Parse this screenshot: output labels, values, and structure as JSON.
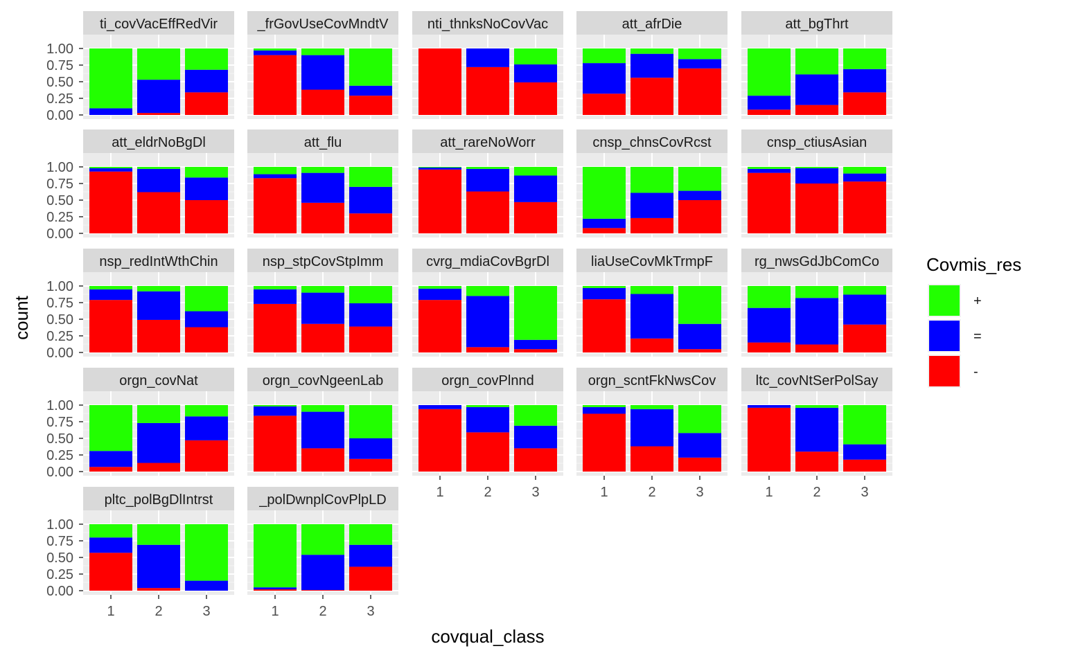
{
  "chart_data": {
    "type": "bar",
    "stacked": true,
    "position": "fill",
    "xlabel": "covqual_class",
    "ylabel": "count",
    "categories": [
      "1",
      "2",
      "3"
    ],
    "ylim": [
      0,
      1
    ],
    "y_ticks": [
      "0.00",
      "0.25",
      "0.50",
      "0.75",
      "1.00"
    ],
    "grid": true,
    "legend": {
      "title": "Covmis_res",
      "placement": "right",
      "entries": [
        {
          "label": "+",
          "color": "#22ff00"
        },
        {
          "label": "=",
          "color": "#0000ff"
        },
        {
          "label": "-",
          "color": "#ff0000"
        }
      ]
    },
    "series_order_bottom_to_top": [
      "-",
      "=",
      "+"
    ],
    "facets": [
      {
        "title": "ti_covVacEffRedVir",
        "minus": [
          0.0,
          0.03,
          0.34
        ],
        "eq": [
          0.1,
          0.5,
          0.34
        ]
      },
      {
        "title": "_frGovUseCovMndtV",
        "minus": [
          0.9,
          0.38,
          0.29
        ],
        "eq": [
          0.07,
          0.52,
          0.15
        ]
      },
      {
        "title": "nti_thnksNoCovVac",
        "minus": [
          1.0,
          0.72,
          0.49
        ],
        "eq": [
          0.0,
          0.28,
          0.27
        ]
      },
      {
        "title": "att_afrDie",
        "minus": [
          0.32,
          0.56,
          0.7
        ],
        "eq": [
          0.46,
          0.36,
          0.14
        ]
      },
      {
        "title": "att_bgThrt",
        "minus": [
          0.08,
          0.15,
          0.34
        ],
        "eq": [
          0.21,
          0.46,
          0.35
        ]
      },
      {
        "title": "att_eldrNoBgDl",
        "minus": [
          0.93,
          0.62,
          0.5
        ],
        "eq": [
          0.05,
          0.35,
          0.34
        ]
      },
      {
        "title": "att_flu",
        "minus": [
          0.83,
          0.46,
          0.3
        ],
        "eq": [
          0.06,
          0.45,
          0.4
        ]
      },
      {
        "title": "att_rareNoWorr",
        "minus": [
          0.96,
          0.63,
          0.47
        ],
        "eq": [
          0.03,
          0.34,
          0.4
        ]
      },
      {
        "title": "cnsp_chnsCovRcst",
        "minus": [
          0.08,
          0.23,
          0.5
        ],
        "eq": [
          0.14,
          0.38,
          0.14
        ]
      },
      {
        "title": "cnsp_ctiusAsian",
        "minus": [
          0.91,
          0.75,
          0.78
        ],
        "eq": [
          0.06,
          0.23,
          0.12
        ]
      },
      {
        "title": "nsp_redIntWthChin",
        "minus": [
          0.79,
          0.49,
          0.38
        ],
        "eq": [
          0.16,
          0.43,
          0.24
        ]
      },
      {
        "title": "nsp_stpCovStpImm",
        "minus": [
          0.73,
          0.43,
          0.39
        ],
        "eq": [
          0.22,
          0.47,
          0.35
        ]
      },
      {
        "title": "cvrg_mdiaCovBgrDl",
        "minus": [
          0.79,
          0.08,
          0.05
        ],
        "eq": [
          0.17,
          0.77,
          0.14
        ]
      },
      {
        "title": "liaUseCovMkTrmpF",
        "minus": [
          0.8,
          0.21,
          0.05
        ],
        "eq": [
          0.17,
          0.67,
          0.38
        ]
      },
      {
        "title": "rg_nwsGdJbComCo",
        "minus": [
          0.15,
          0.12,
          0.42
        ],
        "eq": [
          0.52,
          0.7,
          0.45
        ]
      },
      {
        "title": "orgn_covNat",
        "minus": [
          0.07,
          0.13,
          0.47
        ],
        "eq": [
          0.24,
          0.6,
          0.36
        ]
      },
      {
        "title": "orgn_covNgeenLab",
        "minus": [
          0.84,
          0.35,
          0.19
        ],
        "eq": [
          0.14,
          0.55,
          0.31
        ]
      },
      {
        "title": "orgn_covPlnnd",
        "minus": [
          0.94,
          0.59,
          0.35
        ],
        "eq": [
          0.06,
          0.38,
          0.34
        ]
      },
      {
        "title": "orgn_scntFkNwsCov",
        "minus": [
          0.87,
          0.38,
          0.21
        ],
        "eq": [
          0.1,
          0.56,
          0.37
        ]
      },
      {
        "title": "ltc_covNtSerPolSay",
        "minus": [
          0.96,
          0.3,
          0.18
        ],
        "eq": [
          0.04,
          0.66,
          0.23
        ]
      },
      {
        "title": "pltc_polBgDlIntrst",
        "minus": [
          0.57,
          0.04,
          0.0
        ],
        "eq": [
          0.23,
          0.65,
          0.15
        ]
      },
      {
        "title": "_polDwnplCovPlpLD",
        "minus": [
          0.02,
          0.01,
          0.36
        ],
        "eq": [
          0.03,
          0.53,
          0.33
        ]
      }
    ]
  }
}
